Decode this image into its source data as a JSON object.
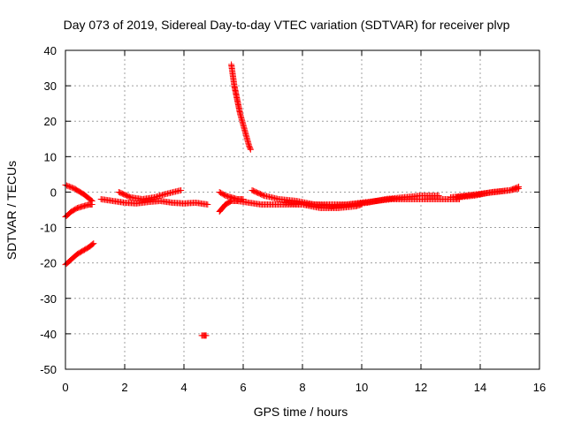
{
  "chart_data": {
    "type": "scatter",
    "title": "Day 073 of 2019, Sidereal Day-to-day VTEC variation (SDTVAR) for receiver plvp",
    "xlabel": "GPS time / hours",
    "ylabel": "SDTVAR / TECUs",
    "xlim": [
      0,
      16
    ],
    "ylim": [
      -50,
      40
    ],
    "xticks": [
      0,
      2,
      4,
      6,
      8,
      10,
      12,
      14,
      16
    ],
    "yticks": [
      -50,
      -40,
      -30,
      -20,
      -10,
      0,
      10,
      20,
      30,
      40
    ],
    "grid": true,
    "marker": "+",
    "marker_color": "#ff0000",
    "segments": [
      {
        "x": [
          0.0,
          0.3,
          0.6,
          0.9
        ],
        "y": [
          2.0,
          1.0,
          -0.5,
          -2.5
        ]
      },
      {
        "x": [
          0.0,
          0.2,
          0.4,
          0.6,
          0.8,
          0.9
        ],
        "y": [
          -7.0,
          -5.5,
          -4.5,
          -4.0,
          -3.5,
          -3.5
        ]
      },
      {
        "x": [
          0.0,
          0.2,
          0.4,
          0.6,
          0.8,
          0.95
        ],
        "y": [
          -20.5,
          -19.0,
          -17.5,
          -16.5,
          -15.5,
          -14.5
        ]
      },
      {
        "x": [
          1.2,
          1.6,
          2.0,
          2.4,
          2.8,
          3.2,
          3.6,
          4.0,
          4.4,
          4.8
        ],
        "y": [
          -2.0,
          -2.5,
          -3.0,
          -3.2,
          -2.8,
          -2.5,
          -3.0,
          -3.2,
          -3.0,
          -3.5
        ]
      },
      {
        "x": [
          1.8,
          2.2,
          2.6,
          3.0,
          3.4,
          3.9
        ],
        "y": [
          0.0,
          -1.5,
          -2.0,
          -1.5,
          -0.5,
          0.5
        ]
      },
      {
        "x": [
          4.6,
          4.7,
          4.75
        ],
        "y": [
          -40.5,
          -40.5,
          -40.5
        ]
      },
      {
        "x": [
          5.6,
          5.65,
          5.7,
          5.75,
          5.8,
          5.85,
          5.9,
          5.95,
          6.0,
          6.05,
          6.1,
          6.15,
          6.2,
          6.25
        ],
        "y": [
          36.0,
          33.0,
          30.0,
          28.0,
          26.0,
          24.0,
          22.0,
          20.5,
          19.0,
          17.5,
          16.0,
          14.5,
          13.0,
          12.0
        ]
      },
      {
        "x": [
          5.2,
          5.3,
          5.4,
          5.5,
          5.6,
          5.8
        ],
        "y": [
          -5.5,
          -4.5,
          -3.5,
          -3.0,
          -2.5,
          -2.5
        ]
      },
      {
        "x": [
          5.2,
          5.4,
          5.6,
          5.8,
          6.0
        ],
        "y": [
          0.0,
          -1.0,
          -1.5,
          -2.0,
          -2.0
        ]
      },
      {
        "x": [
          5.8,
          6.2,
          6.6,
          7.0,
          7.5,
          8.0,
          8.5,
          9.0,
          9.5,
          10.0,
          10.5,
          11.0,
          11.5,
          12.0,
          12.5,
          13.0,
          13.3
        ],
        "y": [
          -2.5,
          -3.0,
          -3.5,
          -3.5,
          -3.5,
          -3.5,
          -3.5,
          -3.5,
          -3.5,
          -3.0,
          -2.5,
          -2.0,
          -2.0,
          -2.0,
          -2.0,
          -2.0,
          -2.0
        ]
      },
      {
        "x": [
          6.3,
          6.7,
          7.2,
          7.8,
          8.4,
          9.0,
          9.6,
          10.2,
          10.8,
          11.4,
          12.0,
          12.6
        ],
        "y": [
          0.5,
          -1.0,
          -2.0,
          -2.5,
          -3.5,
          -4.0,
          -3.5,
          -3.0,
          -2.0,
          -1.5,
          -1.0,
          -1.0
        ]
      },
      {
        "x": [
          7.4,
          8.0,
          8.6,
          9.2,
          9.8,
          10.0
        ],
        "y": [
          -3.0,
          -3.5,
          -4.5,
          -4.5,
          -4.0,
          -3.5
        ]
      },
      {
        "x": [
          13.0,
          13.5,
          14.0,
          14.5,
          15.0,
          15.3
        ],
        "y": [
          -1.5,
          -1.0,
          -0.5,
          0.0,
          0.5,
          1.0
        ]
      },
      {
        "x": [
          13.2,
          13.8,
          14.4,
          15.0,
          15.3
        ],
        "y": [
          -1.5,
          -1.0,
          0.0,
          0.5,
          1.5
        ]
      }
    ]
  }
}
